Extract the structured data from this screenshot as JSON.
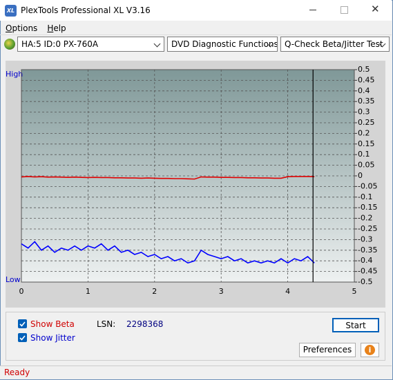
{
  "window": {
    "title": "PlexTools Professional XL V3.16"
  },
  "menu": [
    "Options",
    "Help"
  ],
  "toolbar": {
    "drive": "HA:5 ID:0  PX-760A",
    "function": "DVD Diagnostic Functions",
    "test": "Q-Check Beta/Jitter Test"
  },
  "chart_data": {
    "type": "line",
    "high_label": "High",
    "low_label": "Low",
    "x": [
      0,
      0.1,
      0.2,
      0.3,
      0.4,
      0.5,
      0.6,
      0.7,
      0.8,
      0.9,
      1.0,
      1.1,
      1.2,
      1.3,
      1.4,
      1.5,
      1.6,
      1.7,
      1.8,
      1.9,
      2.0,
      2.1,
      2.2,
      2.3,
      2.4,
      2.5,
      2.6,
      2.7,
      2.8,
      2.9,
      3.0,
      3.1,
      3.2,
      3.3,
      3.4,
      3.5,
      3.6,
      3.7,
      3.8,
      3.9,
      4.0,
      4.1,
      4.2,
      4.3,
      4.4
    ],
    "series": [
      {
        "name": "Show Beta",
        "color": "#e00000",
        "values": [
          -0.005,
          -0.003,
          -0.005,
          -0.004,
          -0.006,
          -0.005,
          -0.006,
          -0.007,
          -0.006,
          -0.007,
          -0.008,
          -0.007,
          -0.008,
          -0.008,
          -0.009,
          -0.009,
          -0.01,
          -0.01,
          -0.011,
          -0.01,
          -0.011,
          -0.012,
          -0.012,
          -0.013,
          -0.013,
          -0.014,
          -0.015,
          -0.005,
          -0.006,
          -0.006,
          -0.007,
          -0.007,
          -0.008,
          -0.008,
          -0.009,
          -0.009,
          -0.01,
          -0.01,
          -0.011,
          -0.011,
          -0.004,
          -0.003,
          -0.003,
          -0.003,
          -0.004
        ]
      },
      {
        "name": "Show Jitter",
        "color": "#0000ff",
        "values": [
          -0.32,
          -0.34,
          -0.31,
          -0.35,
          -0.33,
          -0.36,
          -0.34,
          -0.35,
          -0.33,
          -0.35,
          -0.33,
          -0.34,
          -0.32,
          -0.35,
          -0.33,
          -0.36,
          -0.35,
          -0.37,
          -0.36,
          -0.38,
          -0.37,
          -0.39,
          -0.38,
          -0.4,
          -0.39,
          -0.41,
          -0.4,
          -0.35,
          -0.37,
          -0.38,
          -0.39,
          -0.38,
          -0.4,
          -0.39,
          -0.41,
          -0.4,
          -0.41,
          -0.4,
          -0.41,
          -0.39,
          -0.41,
          -0.39,
          -0.4,
          -0.38,
          -0.41
        ]
      }
    ],
    "xlim": [
      0,
      5
    ],
    "ylim": [
      -0.5,
      0.5
    ],
    "xticks": [
      0,
      1,
      2,
      3,
      4,
      5
    ],
    "yticks": [
      0.5,
      0.45,
      0.4,
      0.35,
      0.3,
      0.25,
      0.2,
      0.15,
      0.1,
      0.05,
      0,
      -0.05,
      -0.1,
      -0.15,
      -0.2,
      -0.25,
      -0.3,
      -0.35,
      -0.4,
      -0.45,
      -0.5
    ],
    "grid": true,
    "end_marker": 4.38
  },
  "controls": {
    "lsn_label": "LSN:",
    "lsn_value": "2298368",
    "start": "Start",
    "preferences": "Preferences"
  },
  "status": "Ready"
}
